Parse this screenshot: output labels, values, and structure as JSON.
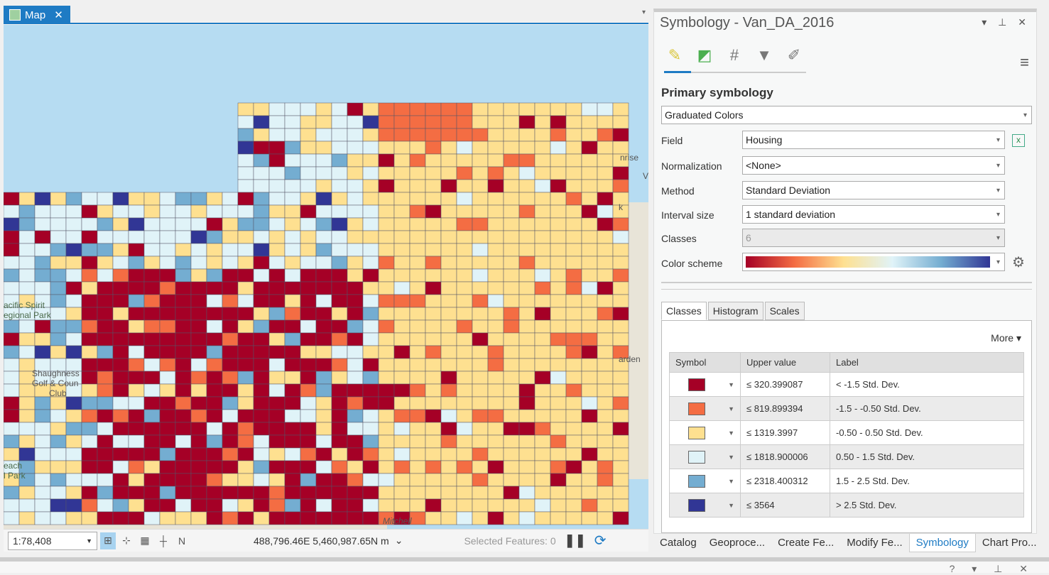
{
  "map_tab": {
    "label": "Map",
    "close": "✕"
  },
  "map": {
    "labels": [
      "acific Spirit",
      "egional Park",
      "Shaughness",
      "Golf & Coun",
      "Club",
      "each",
      "l Park",
      "Mitchell",
      "nrise",
      "arden",
      "k",
      "V"
    ],
    "class_colors": [
      "#a50026",
      "#f46d43",
      "#fee090",
      "#e0f3f8",
      "#74add1",
      "#313695"
    ]
  },
  "status": {
    "scale": "1:78,408",
    "coords": "488,796.46E 5,460,987.65N m",
    "selected": "Selected Features: 0"
  },
  "panel": {
    "title": "Symbology - Van_DA_2016",
    "controls": "▾ ⊥ ✕",
    "section": "Primary symbology",
    "renderer": "Graduated Colors",
    "field_label": "Field",
    "field": "Housing",
    "norm_label": "Normalization",
    "norm": "<None>",
    "method_label": "Method",
    "method": "Standard Deviation",
    "interval_label": "Interval size",
    "interval": "1 standard deviation",
    "classes_label": "Classes",
    "classes": "6",
    "scheme_label": "Color scheme",
    "subtabs": [
      "Classes",
      "Histogram",
      "Scales"
    ],
    "more": "More ▾",
    "headers": [
      "Symbol",
      "Upper value",
      "Label"
    ],
    "rows": [
      {
        "color": "#a50026",
        "value": "≤   320.399087",
        "label": " < -1.5 Std. Dev."
      },
      {
        "color": "#f46d43",
        "value": "≤   819.899394",
        "label": "-1.5 - -0.50 Std. Dev."
      },
      {
        "color": "#fee090",
        "value": "≤   1319.3997",
        "label": "-0.50 - 0.50 Std. Dev."
      },
      {
        "color": "#e0f3f8",
        "value": "≤   1818.900006",
        "label": "0.50 - 1.5 Std. Dev."
      },
      {
        "color": "#74add1",
        "value": "≤   2318.400312",
        "label": "1.5 - 2.5 Std. Dev."
      },
      {
        "color": "#313695",
        "value": "≤   3564",
        "label": " > 2.5 Std. Dev."
      }
    ]
  },
  "bottom_tabs": [
    "Catalog",
    "Geoproce...",
    "Create Fe...",
    "Modify Fe...",
    "Symbology",
    "Chart Pro..."
  ],
  "bottom_pane_controls": "? ▾ ⊥ ✕"
}
